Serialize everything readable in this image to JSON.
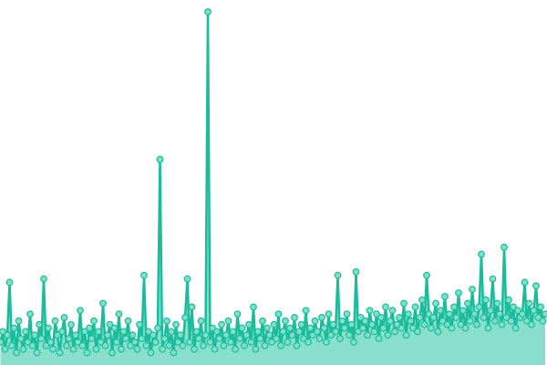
{
  "chart_data": {
    "type": "area",
    "title": "",
    "xlabel": "",
    "ylabel": "",
    "axes_visible": false,
    "grid": false,
    "legend": "none",
    "markers": true,
    "ylim": [
      0,
      100
    ],
    "colors": {
      "line": "#1abc9c",
      "area": "#88dfcc",
      "marker_fill": "#7fdfc9",
      "marker_stroke": "#1abc9c"
    },
    "series": [
      {
        "values": [
          6,
          9,
          4,
          8,
          23,
          5,
          10,
          3,
          12,
          7,
          4,
          9,
          6,
          14,
          5,
          8,
          3,
          11,
          7,
          24,
          5,
          10,
          6,
          4,
          12,
          8,
          3,
          9,
          13,
          5,
          7,
          11,
          4,
          8,
          6,
          15,
          5,
          9,
          3,
          10,
          7,
          12,
          4,
          9,
          6,
          17,
          5,
          8,
          11,
          3,
          10,
          6,
          14,
          4,
          9,
          7,
          12,
          5,
          8,
          6,
          4,
          11,
          7,
          25,
          5,
          9,
          3,
          8,
          6,
          10,
          58,
          4,
          7,
          12,
          5,
          9,
          3,
          11,
          6,
          8,
          5,
          13,
          24,
          6,
          16,
          4,
          9,
          7,
          12,
          5,
          8,
          100,
          6,
          10,
          4,
          9,
          7,
          11,
          5,
          8,
          12,
          6,
          9,
          4,
          14,
          7,
          10,
          5,
          8,
          11,
          6,
          16,
          4,
          9,
          7,
          12,
          5,
          10,
          8,
          6,
          11,
          7,
          14,
          5,
          9,
          12,
          6,
          10,
          8,
          13,
          5,
          9,
          11,
          7,
          15,
          6,
          10,
          8,
          12,
          9,
          7,
          13,
          10,
          6,
          14,
          8,
          11,
          9,
          25,
          7,
          12,
          10,
          14,
          8,
          11,
          6,
          26,
          9,
          13,
          10,
          12,
          8,
          15,
          11,
          9,
          14,
          7,
          13,
          10,
          16,
          8,
          12,
          15,
          9,
          11,
          13,
          10,
          17,
          8,
          14,
          12,
          10,
          16,
          9,
          13,
          18,
          11,
          25,
          14,
          10,
          13,
          17,
          9,
          15,
          12,
          19,
          11,
          14,
          10,
          16,
          13,
          20,
          11,
          15,
          10,
          17,
          12,
          21,
          14,
          11,
          16,
          31,
          13,
          18,
          10,
          15,
          24,
          12,
          17,
          14,
          11,
          33,
          13,
          18,
          12,
          16,
          10,
          15,
          13,
          14,
          23,
          12,
          17,
          11,
          15,
          22,
          13,
          16,
          12,
          14
        ]
      }
    ]
  }
}
